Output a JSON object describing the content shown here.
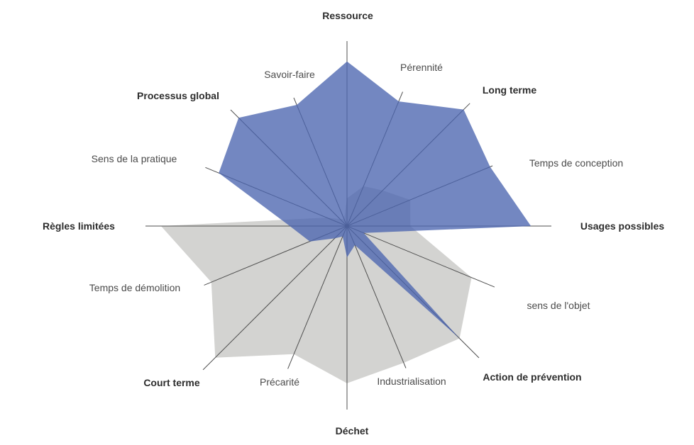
{
  "chart_data": {
    "type": "radar",
    "title": "",
    "axes": [
      {
        "label": "Ressource",
        "bold": true
      },
      {
        "label": "Pérennité",
        "bold": false
      },
      {
        "label": "Long terme",
        "bold": true
      },
      {
        "label": "Temps de conception",
        "bold": false
      },
      {
        "label": "Usages possibles",
        "bold": true
      },
      {
        "label": "sens de l'objet",
        "bold": false
      },
      {
        "label": "Action de prévention",
        "bold": true
      },
      {
        "label": "Industrialisation",
        "bold": false
      },
      {
        "label": "Déchet",
        "bold": true
      },
      {
        "label": "Précarité",
        "bold": false
      },
      {
        "label": "Court terme",
        "bold": true
      },
      {
        "label": "Temps de démolition",
        "bold": false
      },
      {
        "label": "Règles limitées",
        "bold": true
      },
      {
        "label": "Sens de la pratique",
        "bold": false
      },
      {
        "label": "Processus global",
        "bold": true
      },
      {
        "label": "Savoir-faire",
        "bold": false
      }
    ],
    "series": [
      {
        "id": "background-gray",
        "color": "#d3d3d1",
        "opacity": 1,
        "values": [
          0.15,
          0.23,
          0.26,
          0.34,
          0.31,
          0.67,
          0.82,
          0.79,
          0.85,
          0.74,
          0.96,
          0.73,
          0.91,
          0.11,
          0.05,
          0.04
        ]
      },
      {
        "id": "foreground-blue",
        "color": "#4c65b0",
        "opacity": 0.78,
        "values": [
          0.89,
          0.72,
          0.85,
          0.77,
          0.9,
          0.09,
          0.82,
          0.11,
          0.17,
          0.06,
          0.09,
          0.2,
          0.28,
          0.69,
          0.79,
          0.7
        ]
      }
    ],
    "scale": {
      "min": 0,
      "max": 1
    },
    "grid": "16 radial spoke lines from center, no rings, no tick labels",
    "legend": "none",
    "axis_line_color": "#4f4f4f"
  }
}
